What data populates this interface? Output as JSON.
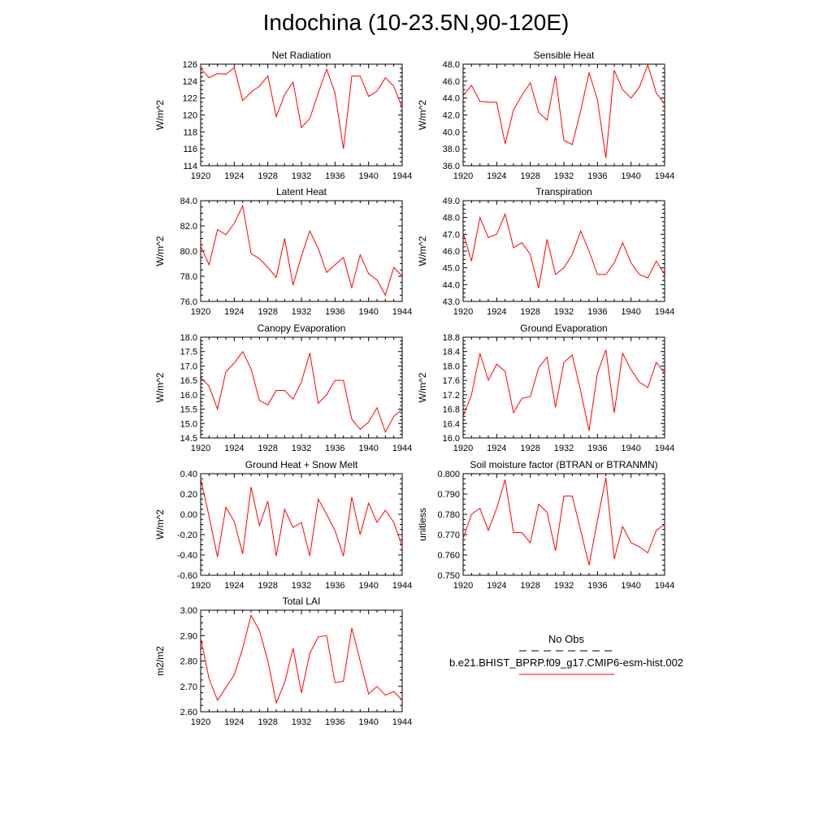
{
  "title": "Indochina (10-23.5N,90-120E)",
  "colors": {
    "model_line": "#ff0000",
    "obs_line": "#000000",
    "axis": "#000000"
  },
  "legend": {
    "obs_label": "No Obs",
    "model_label": "b.e21.BHIST_BPRP.f09_g17.CMIP6-esm-hist.002"
  },
  "chart_data": [
    {
      "type": "line",
      "title": "Net Radiation",
      "ylabel": "W/m^2",
      "xlim": [
        1920,
        1944
      ],
      "xticks": [
        1920,
        1924,
        1928,
        1932,
        1936,
        1940,
        1944
      ],
      "ylim": [
        114,
        126
      ],
      "yticks": [
        114,
        116,
        118,
        120,
        122,
        124,
        126
      ],
      "ydecimals": 0,
      "series": [
        {
          "x": [
            1920,
            1921,
            1922,
            1923,
            1924,
            1925,
            1926,
            1927,
            1928,
            1929,
            1930,
            1931,
            1932,
            1933,
            1934,
            1935,
            1936,
            1937,
            1938,
            1939,
            1940,
            1941,
            1942,
            1943,
            1944
          ],
          "values": [
            125.5,
            124.4,
            124.9,
            124.8,
            125.6,
            121.7,
            122.7,
            123.4,
            124.6,
            119.8,
            122.4,
            123.9,
            118.5,
            119.6,
            122.6,
            125.4,
            122.6,
            116.0,
            124.6,
            124.6,
            122.2,
            122.8,
            124.4,
            123.4,
            120.8
          ]
        }
      ]
    },
    {
      "type": "line",
      "title": "Sensible Heat",
      "ylabel": "W/m^2",
      "xlim": [
        1920,
        1944
      ],
      "xticks": [
        1920,
        1924,
        1928,
        1932,
        1936,
        1940,
        1944
      ],
      "ylim": [
        36,
        48
      ],
      "yticks": [
        36,
        38,
        40,
        42,
        44,
        46,
        48
      ],
      "ydecimals": 1,
      "series": [
        {
          "x": [
            1920,
            1921,
            1922,
            1923,
            1924,
            1925,
            1926,
            1927,
            1928,
            1929,
            1930,
            1931,
            1932,
            1933,
            1934,
            1935,
            1936,
            1937,
            1938,
            1939,
            1940,
            1941,
            1942,
            1943,
            1944
          ],
          "values": [
            44.3,
            45.5,
            43.6,
            43.5,
            43.5,
            38.6,
            42.6,
            44.3,
            45.8,
            42.3,
            41.4,
            46.6,
            39.0,
            38.5,
            42.5,
            47.0,
            43.8,
            36.9,
            47.3,
            45.0,
            44.0,
            45.3,
            47.9,
            44.6,
            43.3
          ]
        }
      ]
    },
    {
      "type": "line",
      "title": "Latent Heat",
      "ylabel": "W/m^2",
      "xlim": [
        1920,
        1944
      ],
      "xticks": [
        1920,
        1924,
        1928,
        1932,
        1936,
        1940,
        1944
      ],
      "ylim": [
        76,
        84
      ],
      "yticks": [
        76,
        78,
        80,
        82,
        84
      ],
      "ydecimals": 1,
      "series": [
        {
          "x": [
            1920,
            1921,
            1922,
            1923,
            1924,
            1925,
            1926,
            1927,
            1928,
            1929,
            1930,
            1931,
            1932,
            1933,
            1934,
            1935,
            1936,
            1937,
            1938,
            1939,
            1940,
            1941,
            1942,
            1943,
            1944
          ],
          "values": [
            80.4,
            78.9,
            81.7,
            81.3,
            82.2,
            83.6,
            79.8,
            79.4,
            78.7,
            77.9,
            81.0,
            77.3,
            79.6,
            81.6,
            80.2,
            78.3,
            78.9,
            79.5,
            77.1,
            79.7,
            78.2,
            77.7,
            76.5,
            78.7,
            78.0
          ]
        }
      ]
    },
    {
      "type": "line",
      "title": "Transpiration",
      "ylabel": "W/m^2",
      "xlim": [
        1920,
        1944
      ],
      "xticks": [
        1920,
        1924,
        1928,
        1932,
        1936,
        1940,
        1944
      ],
      "ylim": [
        43,
        49
      ],
      "yticks": [
        43,
        44,
        45,
        46,
        47,
        48,
        49
      ],
      "ydecimals": 1,
      "series": [
        {
          "x": [
            1920,
            1921,
            1922,
            1923,
            1924,
            1925,
            1926,
            1927,
            1928,
            1929,
            1930,
            1931,
            1932,
            1933,
            1934,
            1935,
            1936,
            1937,
            1938,
            1939,
            1940,
            1941,
            1942,
            1943,
            1944
          ],
          "values": [
            47.1,
            45.4,
            48.0,
            46.8,
            47.0,
            48.2,
            46.2,
            46.5,
            45.8,
            43.8,
            46.7,
            44.6,
            45.0,
            45.8,
            47.2,
            46.0,
            44.6,
            44.6,
            45.3,
            46.5,
            45.3,
            44.6,
            44.4,
            45.4,
            44.6
          ]
        }
      ]
    },
    {
      "type": "line",
      "title": "Canopy Evaporation",
      "ylabel": "W/m^2",
      "xlim": [
        1920,
        1944
      ],
      "xticks": [
        1920,
        1924,
        1928,
        1932,
        1936,
        1940,
        1944
      ],
      "ylim": [
        14.5,
        18
      ],
      "yticks": [
        14.5,
        15,
        15.5,
        16,
        16.5,
        17,
        17.5,
        18
      ],
      "ydecimals": 1,
      "series": [
        {
          "x": [
            1920,
            1921,
            1922,
            1923,
            1924,
            1925,
            1926,
            1927,
            1928,
            1929,
            1930,
            1931,
            1932,
            1933,
            1934,
            1935,
            1936,
            1937,
            1938,
            1939,
            1940,
            1941,
            1942,
            1943,
            1944
          ],
          "values": [
            16.6,
            16.3,
            15.5,
            16.8,
            17.1,
            17.5,
            16.9,
            15.8,
            15.65,
            16.15,
            16.15,
            15.85,
            16.45,
            17.45,
            15.7,
            16.0,
            16.5,
            16.5,
            15.15,
            14.8,
            15.05,
            15.55,
            14.7,
            15.25,
            15.5
          ]
        }
      ]
    },
    {
      "type": "line",
      "title": "Ground Evaporation",
      "ylabel": "W/m^2",
      "xlim": [
        1920,
        1944
      ],
      "xticks": [
        1920,
        1924,
        1928,
        1932,
        1936,
        1940,
        1944
      ],
      "ylim": [
        16,
        18.8
      ],
      "yticks": [
        16,
        16.4,
        16.8,
        17.2,
        17.6,
        18,
        18.4,
        18.8
      ],
      "ydecimals": 1,
      "series": [
        {
          "x": [
            1920,
            1921,
            1922,
            1923,
            1924,
            1925,
            1926,
            1927,
            1928,
            1929,
            1930,
            1931,
            1932,
            1933,
            1934,
            1935,
            1936,
            1937,
            1938,
            1939,
            1940,
            1941,
            1942,
            1943,
            1944
          ],
          "values": [
            16.6,
            17.2,
            18.35,
            17.6,
            18.05,
            17.85,
            16.7,
            17.1,
            17.15,
            17.95,
            18.25,
            16.85,
            18.1,
            18.3,
            17.3,
            16.2,
            17.8,
            18.45,
            16.7,
            18.35,
            17.9,
            17.55,
            17.4,
            18.1,
            17.8
          ]
        }
      ]
    },
    {
      "type": "line",
      "title": "Ground Heat + Snow Melt",
      "ylabel": "W/m^2",
      "xlim": [
        1920,
        1944
      ],
      "xticks": [
        1920,
        1924,
        1928,
        1932,
        1936,
        1940,
        1944
      ],
      "ylim": [
        -0.6,
        0.4
      ],
      "yticks": [
        -0.6,
        -0.4,
        -0.2,
        0,
        0.2,
        0.4
      ],
      "ydecimals": 2,
      "series": [
        {
          "x": [
            1920,
            1921,
            1922,
            1923,
            1924,
            1925,
            1926,
            1927,
            1928,
            1929,
            1930,
            1931,
            1932,
            1933,
            1934,
            1935,
            1936,
            1937,
            1938,
            1939,
            1940,
            1941,
            1942,
            1943,
            1944
          ],
          "values": [
            0.35,
            -0.02,
            -0.42,
            0.07,
            -0.07,
            -0.39,
            0.27,
            -0.11,
            0.13,
            -0.41,
            0.05,
            -0.13,
            -0.08,
            -0.41,
            0.15,
            0.0,
            -0.16,
            -0.41,
            0.17,
            -0.2,
            0.11,
            -0.08,
            0.04,
            -0.08,
            -0.32
          ]
        }
      ]
    },
    {
      "type": "line",
      "title": "Soil moisture factor (BTRAN or BTRANMN)",
      "ylabel": "unitless",
      "xlim": [
        1920,
        1944
      ],
      "xticks": [
        1920,
        1924,
        1928,
        1932,
        1936,
        1940,
        1944
      ],
      "ylim": [
        0.75,
        0.8
      ],
      "yticks": [
        0.75,
        0.76,
        0.77,
        0.78,
        0.79,
        0.8
      ],
      "ydecimals": 3,
      "series": [
        {
          "x": [
            1920,
            1921,
            1922,
            1923,
            1924,
            1925,
            1926,
            1927,
            1928,
            1929,
            1930,
            1931,
            1932,
            1933,
            1934,
            1935,
            1936,
            1937,
            1938,
            1939,
            1940,
            1941,
            1942,
            1943,
            1944
          ],
          "values": [
            0.768,
            0.78,
            0.783,
            0.772,
            0.783,
            0.797,
            0.771,
            0.771,
            0.766,
            0.785,
            0.781,
            0.762,
            0.789,
            0.789,
            0.772,
            0.755,
            0.777,
            0.798,
            0.758,
            0.774,
            0.766,
            0.764,
            0.761,
            0.772,
            0.775
          ]
        }
      ]
    },
    {
      "type": "line",
      "title": "Total LAI",
      "ylabel": "m2/m2",
      "xlim": [
        1920,
        1944
      ],
      "xticks": [
        1920,
        1924,
        1928,
        1932,
        1936,
        1940,
        1944
      ],
      "ylim": [
        2.6,
        3.0
      ],
      "yticks": [
        2.6,
        2.7,
        2.8,
        2.9,
        3.0
      ],
      "ydecimals": 2,
      "series": [
        {
          "x": [
            1920,
            1921,
            1922,
            1923,
            1924,
            1925,
            1926,
            1927,
            1928,
            1929,
            1930,
            1931,
            1932,
            1933,
            1934,
            1935,
            1936,
            1937,
            1938,
            1939,
            1940,
            1941,
            1942,
            1943,
            1944
          ],
          "values": [
            2.89,
            2.73,
            2.645,
            2.695,
            2.745,
            2.85,
            2.98,
            2.92,
            2.8,
            2.635,
            2.715,
            2.85,
            2.675,
            2.83,
            2.895,
            2.9,
            2.715,
            2.72,
            2.93,
            2.8,
            2.67,
            2.7,
            2.665,
            2.68,
            2.645
          ]
        }
      ]
    }
  ]
}
